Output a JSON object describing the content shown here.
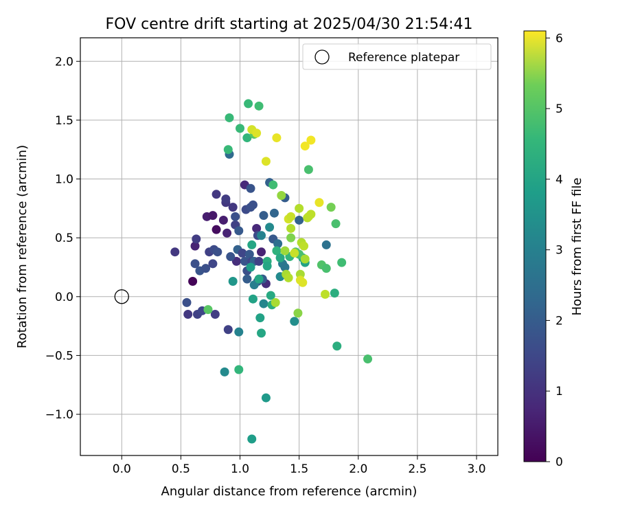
{
  "chart_data": {
    "type": "scatter",
    "title": "FOV centre drift starting at 2025/04/30 21:54:41",
    "xlabel": "Angular distance from reference (arcmin)",
    "ylabel": "Rotation from reference (arcmin)",
    "xlim": [
      -0.35,
      3.18
    ],
    "ylim": [
      -1.35,
      2.2
    ],
    "xticks": [
      0.0,
      0.5,
      1.0,
      1.5,
      2.0,
      2.5,
      3.0
    ],
    "xtick_labels": [
      "0.0",
      "0.5",
      "1.0",
      "1.5",
      "2.0",
      "2.5",
      "3.0"
    ],
    "yticks": [
      -1.0,
      -0.5,
      0.0,
      0.5,
      1.0,
      1.5,
      2.0
    ],
    "ytick_labels": [
      "−1.0",
      "−0.5",
      "0.0",
      "0.5",
      "1.0",
      "1.5",
      "2.0"
    ],
    "grid": true,
    "legend": {
      "placement": "top-right",
      "entries": [
        {
          "label": "Reference platepar",
          "marker": "open-circle"
        }
      ]
    },
    "reference_point": {
      "x": 0.0,
      "y": 0.0
    },
    "colorbar": {
      "label": "Hours from first FF file",
      "colormap": "viridis",
      "range": [
        0,
        6.1
      ],
      "ticks": [
        0,
        1,
        2,
        3,
        4,
        5,
        6
      ],
      "tick_labels": [
        "0",
        "1",
        "2",
        "3",
        "4",
        "5",
        "6"
      ]
    },
    "points": [
      {
        "x": 0.6,
        "y": 0.13,
        "h": 0.05
      },
      {
        "x": 0.62,
        "y": 0.43,
        "h": 0.6
      },
      {
        "x": 0.72,
        "y": 0.68,
        "h": 0.5
      },
      {
        "x": 0.8,
        "y": 0.57,
        "h": 0.2
      },
      {
        "x": 0.77,
        "y": 0.69,
        "h": 0.4
      },
      {
        "x": 0.86,
        "y": 0.65,
        "h": 0.5
      },
      {
        "x": 0.89,
        "y": 0.54,
        "h": 0.6
      },
      {
        "x": 0.97,
        "y": 0.3,
        "h": 0.8
      },
      {
        "x": 1.04,
        "y": 0.95,
        "h": 0.7
      },
      {
        "x": 1.14,
        "y": 0.58,
        "h": 0.7
      },
      {
        "x": 1.18,
        "y": 0.38,
        "h": 0.6
      },
      {
        "x": 1.22,
        "y": 0.11,
        "h": 0.8
      },
      {
        "x": 0.45,
        "y": 0.38,
        "h": 1.0
      },
      {
        "x": 0.55,
        "y": -0.05,
        "h": 1.5
      },
      {
        "x": 0.56,
        "y": -0.15,
        "h": 1.0
      },
      {
        "x": 0.64,
        "y": -0.15,
        "h": 1.2
      },
      {
        "x": 0.68,
        "y": -0.12,
        "h": 1.3
      },
      {
        "x": 0.62,
        "y": 0.28,
        "h": 1.5
      },
      {
        "x": 0.63,
        "y": 0.49,
        "h": 1.1
      },
      {
        "x": 0.66,
        "y": 0.22,
        "h": 1.6
      },
      {
        "x": 0.71,
        "y": 0.24,
        "h": 1.5
      },
      {
        "x": 0.74,
        "y": 0.38,
        "h": 1.2
      },
      {
        "x": 0.78,
        "y": 0.4,
        "h": 1.4
      },
      {
        "x": 0.77,
        "y": 0.28,
        "h": 1.3
      },
      {
        "x": 0.79,
        "y": -0.15,
        "h": 1.1
      },
      {
        "x": 0.8,
        "y": 0.87,
        "h": 1.0
      },
      {
        "x": 0.81,
        "y": 0.38,
        "h": 1.5
      },
      {
        "x": 0.88,
        "y": 0.8,
        "h": 1.0
      },
      {
        "x": 0.88,
        "y": 0.83,
        "h": 1.1
      },
      {
        "x": 0.9,
        "y": -0.28,
        "h": 1.2
      },
      {
        "x": 0.92,
        "y": 0.34,
        "h": 1.6
      },
      {
        "x": 0.94,
        "y": 0.76,
        "h": 1.0
      },
      {
        "x": 0.96,
        "y": 0.61,
        "h": 1.2
      },
      {
        "x": 0.96,
        "y": 0.68,
        "h": 1.5
      },
      {
        "x": 0.98,
        "y": 0.4,
        "h": 1.9
      },
      {
        "x": 0.99,
        "y": 0.56,
        "h": 1.7
      },
      {
        "x": 1.02,
        "y": 0.37,
        "h": 1.3
      },
      {
        "x": 1.04,
        "y": 0.3,
        "h": 1.6
      },
      {
        "x": 1.05,
        "y": 0.74,
        "h": 1.4
      },
      {
        "x": 1.06,
        "y": 0.22,
        "h": 1.5
      },
      {
        "x": 1.06,
        "y": 0.15,
        "h": 1.8
      },
      {
        "x": 1.08,
        "y": 0.36,
        "h": 1.7
      },
      {
        "x": 1.09,
        "y": 0.76,
        "h": 1.5
      },
      {
        "x": 1.09,
        "y": 0.92,
        "h": 1.6
      },
      {
        "x": 1.1,
        "y": 0.3,
        "h": 1.3
      },
      {
        "x": 1.11,
        "y": 0.78,
        "h": 1.5
      },
      {
        "x": 1.12,
        "y": 0.3,
        "h": 1.9
      },
      {
        "x": 1.15,
        "y": 0.13,
        "h": 1.7
      },
      {
        "x": 1.15,
        "y": 0.52,
        "h": 1.4
      },
      {
        "x": 1.16,
        "y": 0.3,
        "h": 1.2
      },
      {
        "x": 1.19,
        "y": 0.15,
        "h": 1.8
      },
      {
        "x": 1.2,
        "y": 0.69,
        "h": 1.8
      },
      {
        "x": 1.25,
        "y": 0.97,
        "h": 1.9
      },
      {
        "x": 1.28,
        "y": 0.49,
        "h": 1.7
      },
      {
        "x": 1.29,
        "y": 0.71,
        "h": 2.0
      },
      {
        "x": 1.32,
        "y": 0.45,
        "h": 2.2
      },
      {
        "x": 1.38,
        "y": 0.84,
        "h": 1.8
      },
      {
        "x": 1.5,
        "y": 0.65,
        "h": 1.9
      },
      {
        "x": 1.73,
        "y": 0.44,
        "h": 2.3
      },
      {
        "x": 0.91,
        "y": 1.21,
        "h": 2.1
      },
      {
        "x": 1.12,
        "y": 0.1,
        "h": 2.6
      },
      {
        "x": 1.18,
        "y": 0.52,
        "h": 2.7
      },
      {
        "x": 1.2,
        "y": -0.06,
        "h": 2.8
      },
      {
        "x": 1.25,
        "y": 0.59,
        "h": 2.9
      },
      {
        "x": 0.87,
        "y": -0.64,
        "h": 2.9
      },
      {
        "x": 0.99,
        "y": -0.3,
        "h": 2.7
      },
      {
        "x": 1.36,
        "y": 0.28,
        "h": 2.5
      },
      {
        "x": 1.38,
        "y": 0.25,
        "h": 2.4
      },
      {
        "x": 1.34,
        "y": 0.17,
        "h": 2.9
      },
      {
        "x": 1.46,
        "y": -0.21,
        "h": 3.0
      },
      {
        "x": 0.94,
        "y": 0.13,
        "h": 3.2
      },
      {
        "x": 1.09,
        "y": 0.25,
        "h": 3.4
      },
      {
        "x": 1.11,
        "y": -0.02,
        "h": 3.5
      },
      {
        "x": 1.16,
        "y": 0.15,
        "h": 3.6
      },
      {
        "x": 1.17,
        "y": -0.18,
        "h": 3.5
      },
      {
        "x": 1.18,
        "y": -0.31,
        "h": 3.6
      },
      {
        "x": 1.22,
        "y": -0.86,
        "h": 3.3
      },
      {
        "x": 1.26,
        "y": 0.01,
        "h": 3.7
      },
      {
        "x": 1.27,
        "y": -0.07,
        "h": 3.8
      },
      {
        "x": 1.1,
        "y": -1.21,
        "h": 3.4
      },
      {
        "x": 1.1,
        "y": 0.44,
        "h": 3.6
      },
      {
        "x": 1.23,
        "y": 0.3,
        "h": 3.8
      },
      {
        "x": 1.23,
        "y": 0.26,
        "h": 3.6
      },
      {
        "x": 1.31,
        "y": 0.39,
        "h": 3.9
      },
      {
        "x": 1.34,
        "y": 0.33,
        "h": 3.7
      },
      {
        "x": 1.53,
        "y": 0.33,
        "h": 3.6
      },
      {
        "x": 1.55,
        "y": 0.29,
        "h": 3.5
      },
      {
        "x": 1.8,
        "y": 0.03,
        "h": 3.8
      },
      {
        "x": 1.82,
        "y": -0.42,
        "h": 3.8
      },
      {
        "x": 0.99,
        "y": -0.62,
        "h": 4.0
      },
      {
        "x": 0.91,
        "y": 1.52,
        "h": 4.1
      },
      {
        "x": 0.9,
        "y": 1.25,
        "h": 4.1
      },
      {
        "x": 1.0,
        "y": 1.43,
        "h": 4.1
      },
      {
        "x": 1.06,
        "y": 1.35,
        "h": 4.0
      },
      {
        "x": 1.07,
        "y": 1.64,
        "h": 4.1
      },
      {
        "x": 1.16,
        "y": 1.62,
        "h": 4.2
      },
      {
        "x": 1.28,
        "y": 0.95,
        "h": 4.2
      },
      {
        "x": 1.42,
        "y": 0.34,
        "h": 4.0
      },
      {
        "x": 1.47,
        "y": 0.38,
        "h": 4.4
      },
      {
        "x": 1.5,
        "y": 0.36,
        "h": 4.3
      },
      {
        "x": 1.58,
        "y": 1.08,
        "h": 4.3
      },
      {
        "x": 1.69,
        "y": 0.27,
        "h": 4.4
      },
      {
        "x": 1.73,
        "y": 0.24,
        "h": 4.3
      },
      {
        "x": 1.81,
        "y": 0.62,
        "h": 4.3
      },
      {
        "x": 1.86,
        "y": 0.29,
        "h": 4.2
      },
      {
        "x": 2.08,
        "y": -0.53,
        "h": 4.3
      },
      {
        "x": 0.73,
        "y": -0.11,
        "h": 4.5
      },
      {
        "x": 1.12,
        "y": 1.38,
        "h": 4.5
      },
      {
        "x": 1.43,
        "y": 0.5,
        "h": 4.9
      },
      {
        "x": 1.49,
        "y": -0.14,
        "h": 5.0
      },
      {
        "x": 1.77,
        "y": 0.76,
        "h": 4.8
      },
      {
        "x": 1.3,
        "y": -0.05,
        "h": 5.3
      },
      {
        "x": 1.35,
        "y": 0.86,
        "h": 5.1
      },
      {
        "x": 1.38,
        "y": 0.39,
        "h": 5.2
      },
      {
        "x": 1.39,
        "y": 0.19,
        "h": 5.3
      },
      {
        "x": 1.41,
        "y": 0.16,
        "h": 5.4
      },
      {
        "x": 1.43,
        "y": 0.58,
        "h": 5.4
      },
      {
        "x": 1.5,
        "y": 0.75,
        "h": 5.4
      },
      {
        "x": 1.51,
        "y": 0.19,
        "h": 5.3
      },
      {
        "x": 1.52,
        "y": 0.46,
        "h": 5.4
      },
      {
        "x": 1.54,
        "y": 0.43,
        "h": 5.5
      },
      {
        "x": 1.55,
        "y": 0.32,
        "h": 5.3
      },
      {
        "x": 1.57,
        "y": 0.67,
        "h": 5.4
      },
      {
        "x": 1.58,
        "y": 0.68,
        "h": 5.5
      },
      {
        "x": 1.6,
        "y": 0.7,
        "h": 5.5
      },
      {
        "x": 1.72,
        "y": 0.02,
        "h": 5.5
      },
      {
        "x": 1.41,
        "y": 0.66,
        "h": 5.7
      },
      {
        "x": 1.43,
        "y": 0.68,
        "h": 5.6
      },
      {
        "x": 1.46,
        "y": 0.37,
        "h": 5.6
      },
      {
        "x": 1.51,
        "y": 0.14,
        "h": 5.8
      },
      {
        "x": 1.53,
        "y": 0.12,
        "h": 5.8
      },
      {
        "x": 1.1,
        "y": 1.42,
        "h": 5.7
      },
      {
        "x": 1.14,
        "y": 1.39,
        "h": 5.8
      },
      {
        "x": 1.22,
        "y": 1.15,
        "h": 5.8
      },
      {
        "x": 1.31,
        "y": 1.35,
        "h": 5.9
      },
      {
        "x": 1.55,
        "y": 1.28,
        "h": 6.0
      },
      {
        "x": 1.6,
        "y": 1.33,
        "h": 6.0
      },
      {
        "x": 1.67,
        "y": 0.8,
        "h": 5.9
      }
    ]
  }
}
